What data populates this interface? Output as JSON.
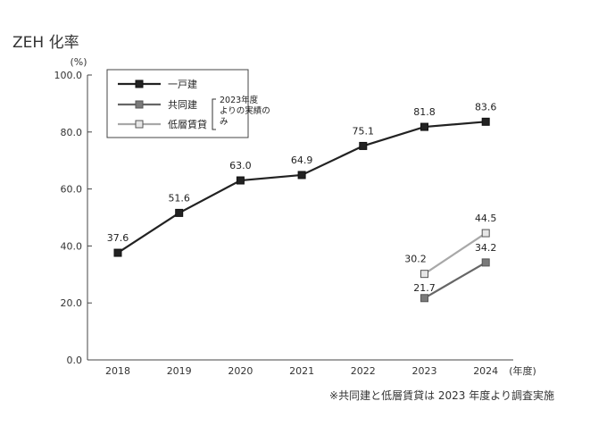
{
  "title": "ZEH 化率",
  "footnote": "※共同建と低層賃貸は 2023 年度より調査実施",
  "chart_data": {
    "type": "line",
    "title": "ZEH 化率",
    "ylabel": "(%)",
    "xlabel": "(年度)",
    "x": [
      "2018",
      "2019",
      "2020",
      "2021",
      "2022",
      "2023",
      "2024"
    ],
    "ylim": [
      0,
      100
    ],
    "yticks": [
      "0.0",
      "20.0",
      "40.0",
      "60.0",
      "80.0",
      "100.0"
    ],
    "grid": false,
    "legend_position": "top-left",
    "legend_note": "2023年度よりの実績のみ",
    "series": [
      {
        "name": "一戸建",
        "color": "#222222",
        "marker_fill": "#222222",
        "values": [
          37.6,
          51.6,
          63.0,
          64.9,
          75.1,
          81.8,
          83.6
        ],
        "labels": [
          "37.6",
          "51.6",
          "63.0",
          "64.9",
          "75.1",
          "81.8",
          "83.6"
        ]
      },
      {
        "name": "共同建",
        "color": "#666666",
        "marker_fill": "#7a7a7a",
        "values": [
          null,
          null,
          null,
          null,
          null,
          21.7,
          34.2
        ],
        "labels": [
          null,
          null,
          null,
          null,
          null,
          "21.7",
          "34.2"
        ]
      },
      {
        "name": "低層賃貸",
        "color": "#a8a8a8",
        "marker_fill": "#e6e6e6",
        "values": [
          null,
          null,
          null,
          null,
          null,
          30.2,
          44.5
        ],
        "labels": [
          null,
          null,
          null,
          null,
          null,
          "30.2",
          "44.5"
        ]
      }
    ]
  }
}
